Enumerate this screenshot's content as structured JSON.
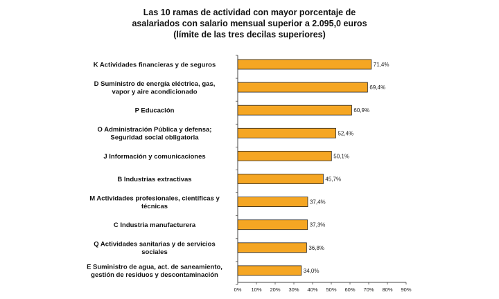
{
  "chart_data": {
    "type": "bar",
    "orientation": "horizontal",
    "title_lines": [
      "Las 10 ramas de actividad  con mayor porcentaje de",
      "asalariados con salario mensual superior a 2.095,0 euros",
      "(límite de las tres decilas superiores)"
    ],
    "categories": [
      [
        "K Actividades financieras y de seguros"
      ],
      [
        "D Suministro de energía eléctrica, gas,",
        "vapor y aire acondicionado"
      ],
      [
        "P Educación"
      ],
      [
        "O Administración Pública y defensa;",
        "Seguridad social obligatoria"
      ],
      [
        "J Información y comunicaciones"
      ],
      [
        "B Industrias extractivas"
      ],
      [
        "M Actividades profesionales, científicas y",
        "técnicas"
      ],
      [
        "C Industria manufacturera"
      ],
      [
        "Q Actividades sanitarias y de servicios",
        "sociales"
      ],
      [
        "E Suministro de agua, act. de saneamiento,",
        "gestión de residuos y descontaminación"
      ]
    ],
    "values": [
      71.4,
      69.4,
      60.9,
      52.4,
      50.1,
      45.7,
      37.4,
      37.3,
      36.8,
      34.0
    ],
    "value_labels": [
      "71,4%",
      "69,4%",
      "60,9%",
      "52,4%",
      "50,1%",
      "45,7%",
      "37,4%",
      "37,3%",
      "36,8%",
      "34,0%"
    ],
    "x_ticks": [
      0,
      10,
      20,
      30,
      40,
      50,
      60,
      70,
      80,
      90
    ],
    "x_tick_labels": [
      "0%",
      "10%",
      "20%",
      "30%",
      "40%",
      "50%",
      "60%",
      "70%",
      "80%",
      "90%"
    ],
    "xlim": [
      0,
      90
    ],
    "bar_color": "#f5a623",
    "bar_edge_color": "#222222",
    "grid": false,
    "legend": "none"
  }
}
